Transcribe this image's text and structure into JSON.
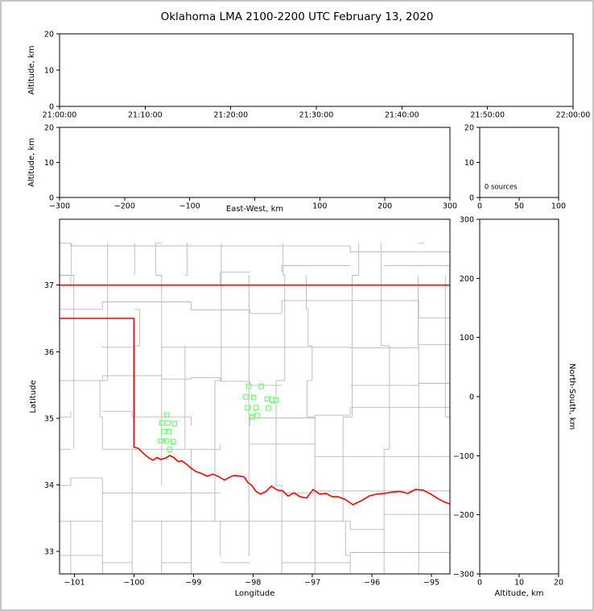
{
  "title": "Oklahoma LMA 2100-2200 UTC February 13, 2020",
  "colors": {
    "state_border": "#ff0000",
    "sources": "#66ff66",
    "county": "#b8b8b8",
    "spine": "#000000",
    "frame": "#c6c6c6",
    "background": "#ffffff"
  },
  "chart_data": [
    {
      "id": "time_height",
      "type": "scatter",
      "xlabel": "",
      "ylabel": "Altitude, km",
      "xlim": [
        0,
        6
      ],
      "ylim": [
        0,
        20
      ],
      "xticks": {
        "values": [
          0,
          1,
          2,
          3,
          4,
          5,
          6
        ],
        "labels": [
          "21:00:00",
          "21:10:00",
          "21:20:00",
          "21:30:00",
          "21:40:00",
          "21:50:00",
          "22:00:00"
        ]
      },
      "yticks": {
        "values": [
          0,
          10,
          20
        ],
        "labels": [
          "0",
          "10",
          "20"
        ]
      },
      "points": []
    },
    {
      "id": "ew_height",
      "type": "scatter",
      "xlabel": "East-West, km",
      "ylabel": "Altitude, km",
      "xlim": [
        -300,
        300
      ],
      "ylim": [
        0,
        20
      ],
      "xticks": {
        "values": [
          -300,
          -200,
          -100,
          0,
          100,
          200,
          300
        ],
        "labels": [
          "−300",
          "−200",
          "−100",
          "",
          "100",
          "200",
          "300"
        ]
      },
      "yticks": {
        "values": [
          0,
          10,
          20
        ],
        "labels": [
          "0",
          "10",
          "20"
        ]
      },
      "points": []
    },
    {
      "id": "alt_hist",
      "type": "line",
      "xlabel": "",
      "ylabel": "",
      "xlim": [
        0,
        100
      ],
      "ylim": [
        0,
        20
      ],
      "xticks": {
        "values": [
          0,
          50,
          100
        ],
        "labels": [
          "0",
          "50",
          "100"
        ]
      },
      "yticks": {
        "values": [
          0,
          10,
          20
        ],
        "labels": [
          "0",
          "10",
          "20"
        ]
      },
      "annotation": {
        "text": "0 sources",
        "x": 0.06,
        "y": 0.88
      },
      "points": []
    },
    {
      "id": "map",
      "type": "scatter",
      "xlabel": "Longitude",
      "ylabel": "Latitude",
      "xlim": [
        -101.25,
        -94.69
      ],
      "ylim": [
        32.66,
        37.99
      ],
      "xticks": {
        "values": [
          -101,
          -100,
          -99,
          -98,
          -97,
          -96,
          -95
        ],
        "labels": [
          "−101",
          "−100",
          "−99",
          "−98",
          "−97",
          "−96",
          "−95"
        ]
      },
      "yticks": {
        "values": [
          33,
          34,
          35,
          36,
          37
        ],
        "labels": [
          "33",
          "34",
          "35",
          "36",
          "37"
        ]
      },
      "county_grid": {
        "seed": 13,
        "lon_start": -101.62,
        "lon_end": -94.25,
        "lon_step": 0.55,
        "lat_start": 32.4,
        "lat_end": 38.15,
        "lat_step": 0.53
      },
      "state_border": [
        [
          [
            -101.25,
            37.0
          ],
          [
            -94.69,
            37.0
          ]
        ],
        [
          [
            -101.25,
            36.5
          ],
          [
            -100.0,
            36.5
          ],
          [
            -100.0,
            34.563
          ],
          [
            -99.93,
            34.55
          ],
          [
            -99.86,
            34.49
          ],
          [
            -99.8,
            34.44
          ],
          [
            -99.74,
            34.4
          ],
          [
            -99.68,
            34.37
          ],
          [
            -99.61,
            34.41
          ],
          [
            -99.55,
            34.38
          ],
          [
            -99.47,
            34.4
          ],
          [
            -99.4,
            34.44
          ],
          [
            -99.33,
            34.41
          ],
          [
            -99.26,
            34.35
          ],
          [
            -99.19,
            34.36
          ],
          [
            -99.12,
            34.31
          ],
          [
            -99.04,
            34.25
          ],
          [
            -98.96,
            34.2
          ],
          [
            -98.87,
            34.17
          ],
          [
            -98.77,
            34.13
          ],
          [
            -98.67,
            34.16
          ],
          [
            -98.57,
            34.12
          ],
          [
            -98.48,
            34.07
          ],
          [
            -98.4,
            34.11
          ],
          [
            -98.32,
            34.14
          ],
          [
            -98.23,
            34.13
          ],
          [
            -98.15,
            34.12
          ],
          [
            -98.09,
            34.04
          ],
          [
            -98.02,
            33.99
          ],
          [
            -97.95,
            33.9
          ],
          [
            -97.87,
            33.86
          ],
          [
            -97.78,
            33.9
          ],
          [
            -97.69,
            33.98
          ],
          [
            -97.59,
            33.92
          ],
          [
            -97.5,
            33.91
          ],
          [
            -97.41,
            33.83
          ],
          [
            -97.31,
            33.88
          ],
          [
            -97.21,
            33.82
          ],
          [
            -97.1,
            33.8
          ],
          [
            -96.99,
            33.93
          ],
          [
            -96.88,
            33.86
          ],
          [
            -96.77,
            33.87
          ],
          [
            -96.67,
            33.82
          ],
          [
            -96.57,
            33.82
          ],
          [
            -96.45,
            33.78
          ],
          [
            -96.32,
            33.7
          ],
          [
            -96.18,
            33.76
          ],
          [
            -96.05,
            33.83
          ],
          [
            -95.92,
            33.86
          ],
          [
            -95.79,
            33.87
          ],
          [
            -95.66,
            33.89
          ],
          [
            -95.53,
            33.9
          ],
          [
            -95.4,
            33.87
          ],
          [
            -95.27,
            33.93
          ],
          [
            -95.14,
            33.92
          ],
          [
            -95.01,
            33.86
          ],
          [
            -94.89,
            33.79
          ],
          [
            -94.78,
            33.74
          ],
          [
            -94.69,
            33.71
          ]
        ]
      ],
      "sources": [
        [
          -99.45,
          35.05
        ],
        [
          -99.53,
          34.93
        ],
        [
          -99.43,
          34.93
        ],
        [
          -99.32,
          34.92
        ],
        [
          -99.5,
          34.8
        ],
        [
          -99.41,
          34.8
        ],
        [
          -99.55,
          34.66
        ],
        [
          -99.45,
          34.66
        ],
        [
          -99.34,
          34.65
        ],
        [
          -99.4,
          34.53
        ],
        [
          -98.07,
          35.48
        ],
        [
          -97.86,
          35.48
        ],
        [
          -98.12,
          35.32
        ],
        [
          -97.99,
          35.31
        ],
        [
          -97.76,
          35.29
        ],
        [
          -97.68,
          35.28
        ],
        [
          -97.61,
          35.27
        ],
        [
          -98.09,
          35.16
        ],
        [
          -97.95,
          35.16
        ],
        [
          -97.74,
          35.15
        ],
        [
          -98.02,
          35.02
        ],
        [
          -97.93,
          35.04
        ]
      ]
    },
    {
      "id": "ns_height",
      "type": "scatter",
      "xlabel": "Altitude, km",
      "ylabel": "",
      "ylabel_right": "North-South, km",
      "xlim": [
        0,
        20
      ],
      "ylim": [
        -300,
        300
      ],
      "xticks": {
        "values": [
          0,
          10,
          20
        ],
        "labels": [
          "0",
          "10",
          "20"
        ]
      },
      "yticks": {
        "values": [
          -300,
          -200,
          -100,
          0,
          100,
          200,
          300
        ],
        "labels": [
          "−300",
          "−200",
          "−100",
          "0",
          "100",
          "200",
          "300"
        ]
      },
      "points": []
    }
  ]
}
